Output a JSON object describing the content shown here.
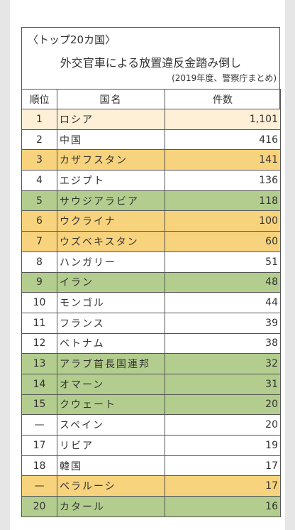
{
  "header": {
    "bracket_title": "〈トップ20カ国〉",
    "title": "外交官車による放置違反金踏み倒し",
    "note": "(2019年度、警察庁まとめ)"
  },
  "table": {
    "columns": [
      "順位",
      "国名",
      "件数"
    ],
    "rows": [
      {
        "cells": [
          "1",
          "ロシア",
          "1,101"
        ],
        "color": "#fdf0d6"
      },
      {
        "cells": [
          "2",
          "中国",
          "416"
        ],
        "color": "#ffffff"
      },
      {
        "cells": [
          "3",
          "カザフスタン",
          "141"
        ],
        "color": "#f8d37d"
      },
      {
        "cells": [
          "4",
          "エジプト",
          "136"
        ],
        "color": "#ffffff"
      },
      {
        "cells": [
          "5",
          "サウジアラビア",
          "118"
        ],
        "color": "#b3cd8e"
      },
      {
        "cells": [
          "6",
          "ウクライナ",
          "100"
        ],
        "color": "#f8d37d"
      },
      {
        "cells": [
          "7",
          "ウズベキスタン",
          "60"
        ],
        "color": "#f8d37d"
      },
      {
        "cells": [
          "8",
          "ハンガリー",
          "51"
        ],
        "color": "#ffffff"
      },
      {
        "cells": [
          "9",
          "イラン",
          "48"
        ],
        "color": "#b3cd8e"
      },
      {
        "cells": [
          "10",
          "モンゴル",
          "44"
        ],
        "color": "#ffffff"
      },
      {
        "cells": [
          "11",
          "フランス",
          "39"
        ],
        "color": "#ffffff"
      },
      {
        "cells": [
          "12",
          "ベトナム",
          "38"
        ],
        "color": "#ffffff"
      },
      {
        "cells": [
          "13",
          "アラブ首長国連邦",
          "32"
        ],
        "color": "#b3cd8e"
      },
      {
        "cells": [
          "14",
          "オマーン",
          "31"
        ],
        "color": "#b3cd8e"
      },
      {
        "cells": [
          "15",
          "クウェート",
          "20"
        ],
        "color": "#b3cd8e"
      },
      {
        "cells": [
          "—",
          "スペイン",
          "20"
        ],
        "color": "#ffffff"
      },
      {
        "cells": [
          "17",
          "リビア",
          "19"
        ],
        "color": "#ffffff"
      },
      {
        "cells": [
          "18",
          "韓国",
          "17"
        ],
        "color": "#ffffff"
      },
      {
        "cells": [
          "—",
          "ベラルーシ",
          "17"
        ],
        "color": "#f8d37d"
      },
      {
        "cells": [
          "20",
          "カタール",
          "16"
        ],
        "color": "#b3cd8e"
      }
    ]
  }
}
